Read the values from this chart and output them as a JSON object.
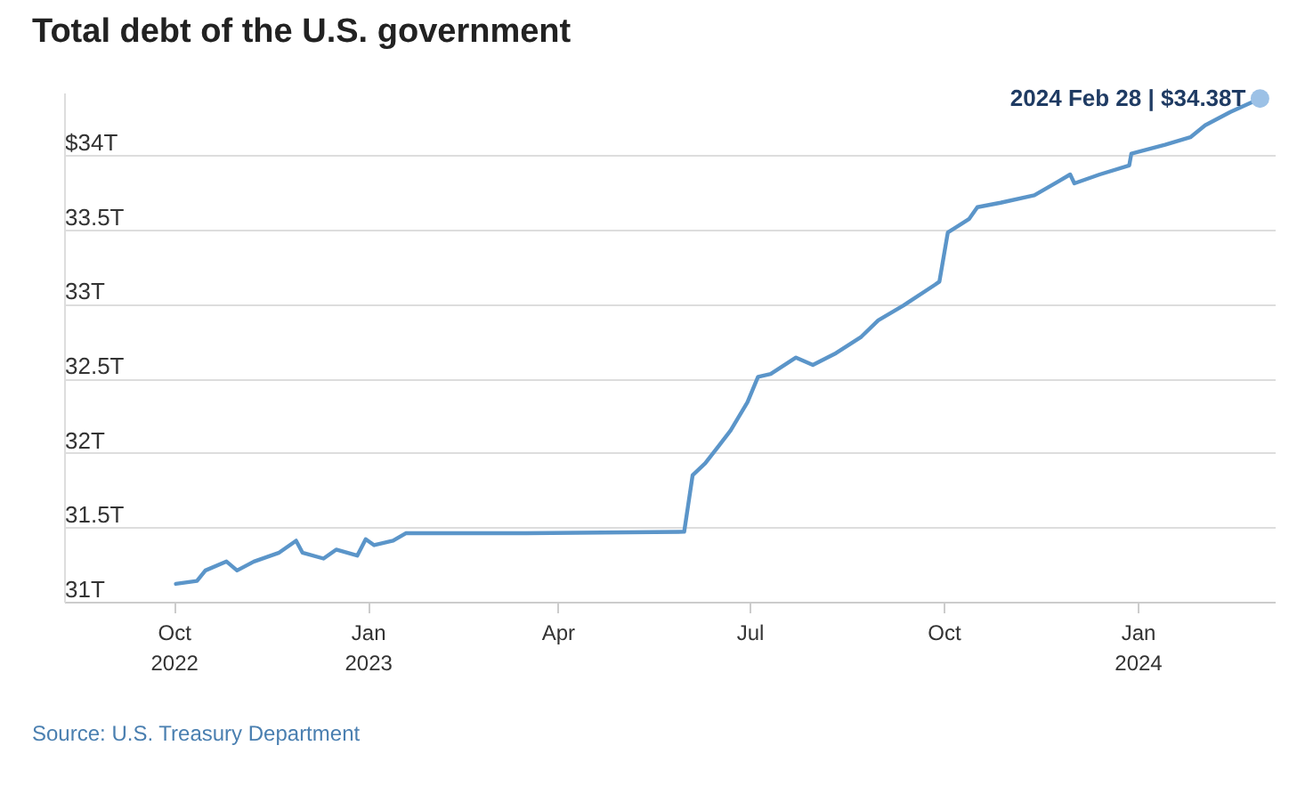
{
  "chart_data": {
    "type": "line",
    "title": "Total debt of the U.S. government",
    "x": [
      "2022-10-02",
      "2022-10-12",
      "2022-10-16",
      "2022-10-26",
      "2022-10-31",
      "2022-11-08",
      "2022-11-20",
      "2022-11-28",
      "2022-12-01",
      "2022-12-11",
      "2022-12-17",
      "2022-12-27",
      "2022-12-31",
      "2023-01-04",
      "2023-01-13",
      "2023-01-19",
      "2023-03-17",
      "2023-05-31",
      "2023-06-04",
      "2023-06-10",
      "2023-06-16",
      "2023-06-22",
      "2023-06-30",
      "2023-07-05",
      "2023-07-11",
      "2023-07-23",
      "2023-07-31",
      "2023-08-11",
      "2023-08-23",
      "2023-08-31",
      "2023-09-12",
      "2023-09-27",
      "2023-09-29",
      "2023-10-03",
      "2023-10-13",
      "2023-10-17",
      "2023-10-28",
      "2023-11-13",
      "2023-11-24",
      "2023-11-30",
      "2023-12-02",
      "2023-12-14",
      "2023-12-28",
      "2023-12-29",
      "2024-01-14",
      "2024-01-26",
      "2024-02-02",
      "2024-02-14",
      "2024-02-28"
    ],
    "series": [
      {
        "color": "#5b95c9",
        "values": [
          31.12,
          31.14,
          31.21,
          31.27,
          31.21,
          31.27,
          31.33,
          31.41,
          31.33,
          31.29,
          31.35,
          31.31,
          31.42,
          31.38,
          31.41,
          31.46,
          31.46,
          31.47,
          31.85,
          31.93,
          32.04,
          32.15,
          32.34,
          32.51,
          32.53,
          32.64,
          32.59,
          32.67,
          32.78,
          32.89,
          32.99,
          33.13,
          33.15,
          33.48,
          33.57,
          33.65,
          33.68,
          33.73,
          33.82,
          33.87,
          33.81,
          33.87,
          33.93,
          34.01,
          34.07,
          34.12,
          34.2,
          34.29,
          34.38
        ]
      }
    ],
    "xlim": [
      "2022-08-10",
      "2024-03-06"
    ],
    "xticks": [
      {
        "value": "2022-10-01",
        "label": "Oct\n2022"
      },
      {
        "value": "2023-01-01",
        "label": "Jan\n2023"
      },
      {
        "value": "2023-04-01",
        "label": "Apr"
      },
      {
        "value": "2023-07-01",
        "label": "Jul"
      },
      {
        "value": "2023-10-01",
        "label": "Oct"
      },
      {
        "value": "2024-01-01",
        "label": "Jan\n2024"
      }
    ],
    "ylim": [
      31,
      34.42
    ],
    "yticks": [
      {
        "value": 31,
        "label": "31T"
      },
      {
        "value": 31.5,
        "label": "31.5T"
      },
      {
        "value": 32,
        "label": "32T"
      },
      {
        "value": 32.5,
        "label": "32.5T"
      },
      {
        "value": 33,
        "label": "33T"
      },
      {
        "value": 33.5,
        "label": "33.5T"
      },
      {
        "value": 34,
        "label": "$34T"
      }
    ],
    "grid": "y",
    "marker": "none",
    "line_style": "solid",
    "annotations": [
      {
        "text": "2024 Feb 28 | $34.38T",
        "x": "2024-02-28",
        "y": 34.38
      },
      "Source: U.S. Treasury Department"
    ]
  }
}
